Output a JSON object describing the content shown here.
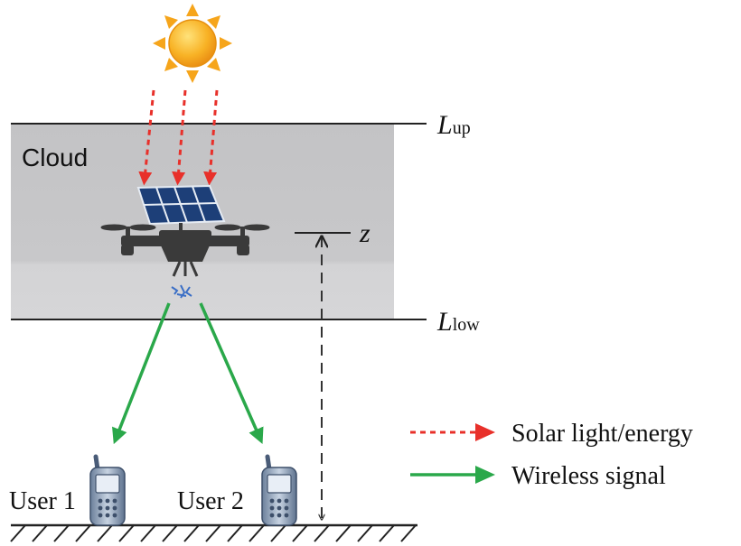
{
  "cloud_label": "Cloud",
  "layer_labels": {
    "upper": {
      "symbol": "L",
      "subscript": "up"
    },
    "lower": {
      "symbol": "L",
      "subscript": "low"
    }
  },
  "altitude_label": "z",
  "users": [
    {
      "label": "User 1"
    },
    {
      "label": "User 2"
    }
  ],
  "legend": {
    "solar": "Solar light/energy",
    "wireless": "Wireless signal"
  },
  "colors": {
    "cloud_top": "#c4c4c6",
    "cloud_bottom": "#d2d2d4",
    "solar_arrow": "#e8302a",
    "wireless_arrow": "#2aa84a",
    "sun": "#f6a51b",
    "panel": "#1d3f78",
    "drone": "#3a3a3a",
    "signal_spark": "#3b6fc6"
  },
  "icons": [
    "sun-icon",
    "solar-panel-icon",
    "drone-icon",
    "mobile-phone-icon"
  ]
}
